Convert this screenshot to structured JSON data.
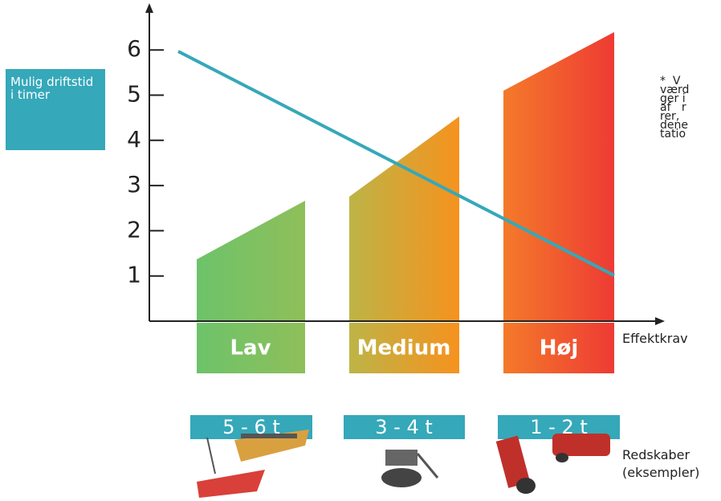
{
  "y_axis": {
    "label": "Mulig driftstid i timer",
    "ticks": [
      1,
      2,
      3,
      4,
      5,
      6
    ]
  },
  "x_axis": {
    "label": "Effektkrav"
  },
  "levels": [
    {
      "label": "Lav",
      "time": "5 - 6 t"
    },
    {
      "label": "Medium",
      "time": "3 - 4 t"
    },
    {
      "label": "Høj",
      "time": "1 - 2 t"
    }
  ],
  "tools_label": "Redskaber (eksempler)",
  "note": [
    "*  V",
    "værd",
    "ger i",
    "af   r",
    "rer,",
    "dene",
    "tatio"
  ]
}
